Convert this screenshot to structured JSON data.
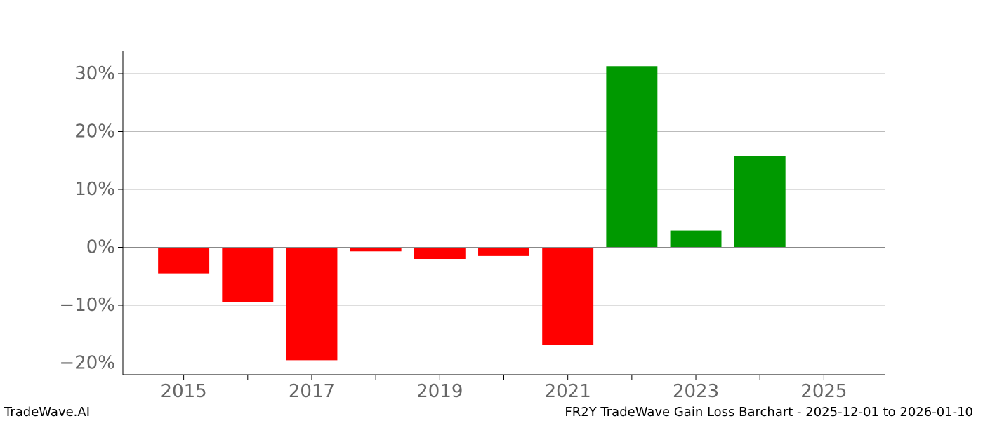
{
  "footer": {
    "brand": "TradeWave.AI",
    "caption": "FR2Y TradeWave Gain Loss Barchart - 2025-12-01 to 2026-01-10"
  },
  "colors": {
    "gain": "#009900",
    "loss": "#ff0000",
    "grid": "#bbbbbb",
    "tick_text": "#666666"
  },
  "chart_data": {
    "type": "bar",
    "x": [
      2015,
      2016,
      2017,
      2018,
      2019,
      2020,
      2021,
      2022,
      2023,
      2024
    ],
    "values": [
      -4.5,
      -9.5,
      -19.5,
      -0.7,
      -2.0,
      -1.5,
      -16.8,
      31.3,
      2.9,
      15.7
    ],
    "ylim": [
      -22,
      34
    ],
    "xlim": [
      2014.05,
      2025.95
    ],
    "y_ticks": [
      -20,
      -10,
      0,
      10,
      20,
      30
    ],
    "y_tick_labels": [
      "−20%",
      "−10%",
      "0%",
      "10%",
      "20%",
      "30%"
    ],
    "x_ticks": [
      2015,
      2016,
      2017,
      2018,
      2019,
      2020,
      2021,
      2022,
      2023,
      2024,
      2025
    ],
    "x_tick_labels": [
      "2015",
      "",
      "2017",
      "",
      "2019",
      "",
      "2021",
      "",
      "2023",
      "",
      "2025"
    ],
    "grid": true,
    "title": "",
    "xlabel": "",
    "ylabel": ""
  }
}
